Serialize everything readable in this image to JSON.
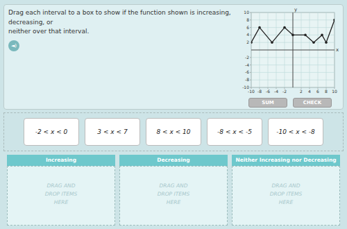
{
  "chart_data": {
    "type": "line",
    "x": [
      -10,
      -8,
      -5,
      -2,
      0,
      3,
      5,
      7,
      8,
      10
    ],
    "values": [
      2,
      6,
      2,
      6,
      4,
      4,
      2,
      4,
      2,
      8
    ],
    "color": "#222222",
    "marker": "circle",
    "xlim": [
      -10,
      10
    ],
    "ylim": [
      -10,
      10
    ],
    "xticks": [
      -10,
      -8,
      -6,
      -4,
      -2,
      2,
      4,
      6,
      8,
      10
    ],
    "yticks": [
      -10,
      -8,
      -6,
      -4,
      -2,
      2,
      4,
      6,
      8,
      10
    ],
    "grid": true,
    "x_label": "x",
    "y_label": "y"
  },
  "page": {
    "instruction": "Drag each interval to a box to show if the function shown is increasing, decreasing, or\nneither over that interval.",
    "speaker_icon": "◄)",
    "buttons": [
      "SUM",
      "CHECK"
    ],
    "intervals": [
      "-2 < x < 0",
      "3 < x < 7",
      "8 < x < 10",
      "-8 < x < -5",
      "-10 < x < -8"
    ],
    "drop_zones": [
      "Increasing",
      "Decreasing",
      "Neither Increasing nor Decreasing"
    ],
    "drop_text": "DRAG AND\nDROP ITEMS\nHERE"
  }
}
